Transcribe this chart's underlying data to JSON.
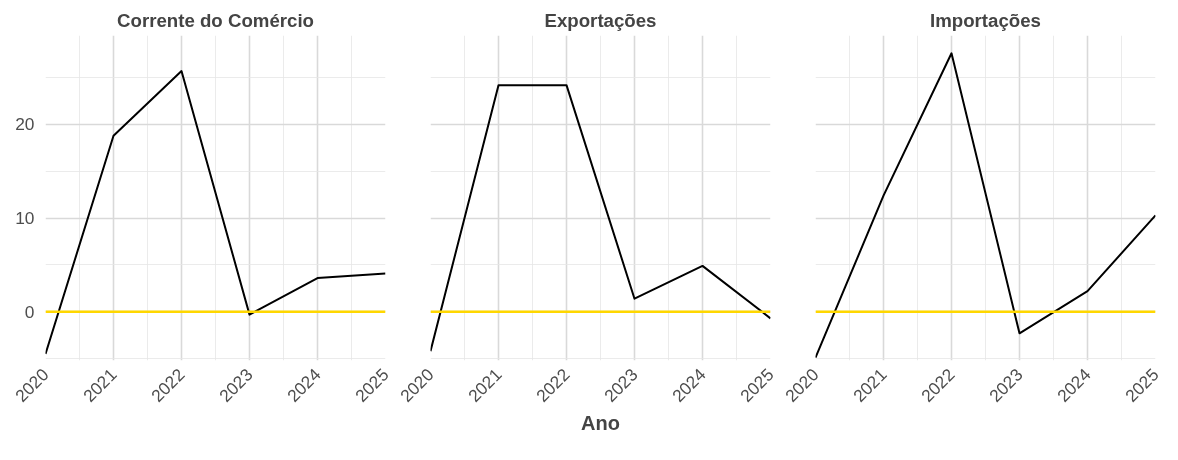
{
  "chart_data": [
    {
      "type": "line",
      "title": "Corrente do Comércio",
      "x": [
        2020,
        2021,
        2022,
        2023,
        2024,
        2025
      ],
      "series": [
        {
          "color": "#000000",
          "values": [
            -4.5,
            18.8,
            25.7,
            -0.3,
            3.6,
            4.1
          ]
        }
      ],
      "xlim": [
        2020,
        2025
      ],
      "ylim": [
        -5.2,
        29.5
      ],
      "xticks": [
        2020,
        2021,
        2022,
        2023,
        2024,
        2025
      ],
      "yticks": [
        0,
        10,
        20
      ],
      "grid": true,
      "ref_lines": [
        {
          "axis": "y",
          "value": 0,
          "color": "#ffd700"
        }
      ]
    },
    {
      "type": "line",
      "title": "Exportações",
      "xlabel": "Ano",
      "x": [
        2020,
        2021,
        2022,
        2023,
        2024,
        2025
      ],
      "series": [
        {
          "color": "#000000",
          "values": [
            -4.2,
            24.2,
            24.2,
            1.4,
            4.9,
            -0.7
          ]
        }
      ],
      "xlim": [
        2020,
        2025
      ],
      "ylim": [
        -5.2,
        29.5
      ],
      "xticks": [
        2020,
        2021,
        2022,
        2023,
        2024,
        2025
      ],
      "yticks": [
        0,
        10,
        20
      ],
      "grid": true,
      "tick_labels": "x",
      "ref_lines": [
        {
          "axis": "y",
          "value": 0,
          "color": "#ffd700"
        }
      ]
    },
    {
      "type": "line",
      "title": "Importações",
      "x": [
        2020,
        2021,
        2022,
        2023,
        2024,
        2025
      ],
      "series": [
        {
          "color": "#000000",
          "values": [
            -4.9,
            12.4,
            27.6,
            -2.3,
            2.2,
            10.3
          ]
        }
      ],
      "xlim": [
        2020,
        2025
      ],
      "ylim": [
        -5.2,
        29.5
      ],
      "xticks": [
        2020,
        2021,
        2022,
        2023,
        2024,
        2025
      ],
      "yticks": [
        0,
        10,
        20
      ],
      "grid": true,
      "tick_labels": "x",
      "ref_lines": [
        {
          "axis": "y",
          "value": 0,
          "color": "#ffd700"
        }
      ]
    }
  ]
}
